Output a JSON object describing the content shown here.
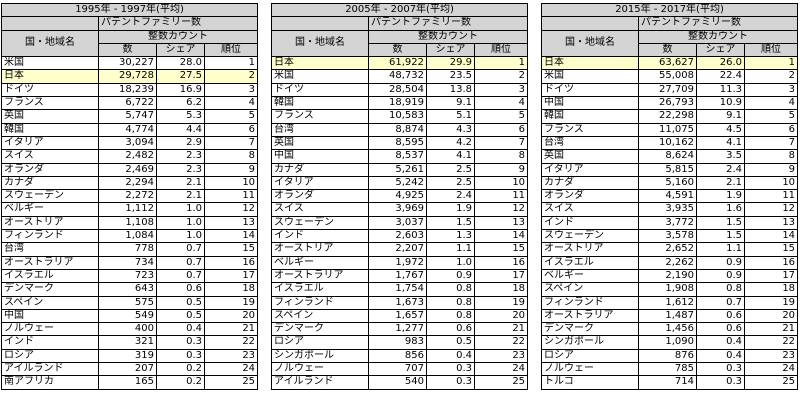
{
  "panels": [
    {
      "period": "1995年 - 1997年(平均)",
      "family_label": "パテントファミリー数",
      "country_label": "国・地域名",
      "integer_count_label": "整数カウント",
      "col_count": "数",
      "col_share": "シェア",
      "col_rank": "順位",
      "highlight_row": 1,
      "rows": [
        {
          "name": "米国",
          "count": "30,227",
          "share": "28.0",
          "rank": "1"
        },
        {
          "name": "日本",
          "count": "29,728",
          "share": "27.5",
          "rank": "2"
        },
        {
          "name": "ドイツ",
          "count": "18,239",
          "share": "16.9",
          "rank": "3"
        },
        {
          "name": "フランス",
          "count": "6,722",
          "share": "6.2",
          "rank": "4"
        },
        {
          "name": "英国",
          "count": "5,747",
          "share": "5.3",
          "rank": "5"
        },
        {
          "name": "韓国",
          "count": "4,774",
          "share": "4.4",
          "rank": "6"
        },
        {
          "name": "イタリア",
          "count": "3,094",
          "share": "2.9",
          "rank": "7"
        },
        {
          "name": "スイス",
          "count": "2,482",
          "share": "2.3",
          "rank": "8"
        },
        {
          "name": "オランダ",
          "count": "2,469",
          "share": "2.3",
          "rank": "9"
        },
        {
          "name": "カナダ",
          "count": "2,294",
          "share": "2.1",
          "rank": "10"
        },
        {
          "name": "スウェーデン",
          "count": "2,272",
          "share": "2.1",
          "rank": "11"
        },
        {
          "name": "ベルギー",
          "count": "1,112",
          "share": "1.0",
          "rank": "12"
        },
        {
          "name": "オーストリア",
          "count": "1,108",
          "share": "1.0",
          "rank": "13"
        },
        {
          "name": "フィンランド",
          "count": "1,084",
          "share": "1.0",
          "rank": "14"
        },
        {
          "name": "台湾",
          "count": "778",
          "share": "0.7",
          "rank": "15"
        },
        {
          "name": "オーストラリア",
          "count": "734",
          "share": "0.7",
          "rank": "16"
        },
        {
          "name": "イスラエル",
          "count": "723",
          "share": "0.7",
          "rank": "17"
        },
        {
          "name": "デンマーク",
          "count": "643",
          "share": "0.6",
          "rank": "18"
        },
        {
          "name": "スペイン",
          "count": "575",
          "share": "0.5",
          "rank": "19"
        },
        {
          "name": "中国",
          "count": "549",
          "share": "0.5",
          "rank": "20"
        },
        {
          "name": "ノルウェー",
          "count": "400",
          "share": "0.4",
          "rank": "21"
        },
        {
          "name": "インド",
          "count": "321",
          "share": "0.3",
          "rank": "22"
        },
        {
          "name": "ロシア",
          "count": "319",
          "share": "0.3",
          "rank": "23"
        },
        {
          "name": "アイルランド",
          "count": "207",
          "share": "0.2",
          "rank": "24"
        },
        {
          "name": "南アフリカ",
          "count": "165",
          "share": "0.2",
          "rank": "25"
        }
      ]
    },
    {
      "period": "2005年 - 2007年(平均)",
      "family_label": "パテントファミリー数",
      "country_label": "国・地域名",
      "integer_count_label": "整数カウント",
      "col_count": "数",
      "col_share": "シェア",
      "col_rank": "順位",
      "highlight_row": 0,
      "rows": [
        {
          "name": "日本",
          "count": "61,922",
          "share": "29.9",
          "rank": "1"
        },
        {
          "name": "米国",
          "count": "48,732",
          "share": "23.5",
          "rank": "2"
        },
        {
          "name": "ドイツ",
          "count": "28,504",
          "share": "13.8",
          "rank": "3"
        },
        {
          "name": "韓国",
          "count": "18,919",
          "share": "9.1",
          "rank": "4"
        },
        {
          "name": "フランス",
          "count": "10,583",
          "share": "5.1",
          "rank": "5"
        },
        {
          "name": "台湾",
          "count": "8,874",
          "share": "4.3",
          "rank": "6"
        },
        {
          "name": "英国",
          "count": "8,595",
          "share": "4.2",
          "rank": "7"
        },
        {
          "name": "中国",
          "count": "8,537",
          "share": "4.1",
          "rank": "8"
        },
        {
          "name": "カナダ",
          "count": "5,261",
          "share": "2.5",
          "rank": "9"
        },
        {
          "name": "イタリア",
          "count": "5,242",
          "share": "2.5",
          "rank": "10"
        },
        {
          "name": "オランダ",
          "count": "4,925",
          "share": "2.4",
          "rank": "11"
        },
        {
          "name": "スイス",
          "count": "3,969",
          "share": "1.9",
          "rank": "12"
        },
        {
          "name": "スウェーデン",
          "count": "3,037",
          "share": "1.5",
          "rank": "13"
        },
        {
          "name": "インド",
          "count": "2,603",
          "share": "1.3",
          "rank": "14"
        },
        {
          "name": "オーストリア",
          "count": "2,207",
          "share": "1.1",
          "rank": "15"
        },
        {
          "name": "ベルギー",
          "count": "1,972",
          "share": "1.0",
          "rank": "16"
        },
        {
          "name": "オーストラリア",
          "count": "1,767",
          "share": "0.9",
          "rank": "17"
        },
        {
          "name": "イスラエル",
          "count": "1,754",
          "share": "0.8",
          "rank": "18"
        },
        {
          "name": "フィンランド",
          "count": "1,673",
          "share": "0.8",
          "rank": "19"
        },
        {
          "name": "スペイン",
          "count": "1,657",
          "share": "0.8",
          "rank": "20"
        },
        {
          "name": "デンマーク",
          "count": "1,277",
          "share": "0.6",
          "rank": "21"
        },
        {
          "name": "ロシア",
          "count": "983",
          "share": "0.5",
          "rank": "22"
        },
        {
          "name": "シンガポール",
          "count": "856",
          "share": "0.4",
          "rank": "23"
        },
        {
          "name": "ノルウェー",
          "count": "707",
          "share": "0.3",
          "rank": "24"
        },
        {
          "name": "アイルランド",
          "count": "540",
          "share": "0.3",
          "rank": "25"
        }
      ]
    },
    {
      "period": "2015年 - 2017年(平均)",
      "family_label": "パテントファミリー数",
      "country_label": "国・地域名",
      "integer_count_label": "整数カウント",
      "col_count": "数",
      "col_share": "シェア",
      "col_rank": "順位",
      "highlight_row": 0,
      "rows": [
        {
          "name": "日本",
          "count": "63,627",
          "share": "26.0",
          "rank": "1"
        },
        {
          "name": "米国",
          "count": "55,008",
          "share": "22.4",
          "rank": "2"
        },
        {
          "name": "ドイツ",
          "count": "27,709",
          "share": "11.3",
          "rank": "3"
        },
        {
          "name": "中国",
          "count": "26,793",
          "share": "10.9",
          "rank": "4"
        },
        {
          "name": "韓国",
          "count": "22,298",
          "share": "9.1",
          "rank": "5"
        },
        {
          "name": "フランス",
          "count": "11,075",
          "share": "4.5",
          "rank": "6"
        },
        {
          "name": "台湾",
          "count": "10,162",
          "share": "4.1",
          "rank": "7"
        },
        {
          "name": "英国",
          "count": "8,624",
          "share": "3.5",
          "rank": "8"
        },
        {
          "name": "イタリア",
          "count": "5,815",
          "share": "2.4",
          "rank": "9"
        },
        {
          "name": "カナダ",
          "count": "5,160",
          "share": "2.1",
          "rank": "10"
        },
        {
          "name": "オランダ",
          "count": "4,591",
          "share": "1.9",
          "rank": "11"
        },
        {
          "name": "スイス",
          "count": "3,935",
          "share": "1.6",
          "rank": "12"
        },
        {
          "name": "インド",
          "count": "3,772",
          "share": "1.5",
          "rank": "13"
        },
        {
          "name": "スウェーデン",
          "count": "3,578",
          "share": "1.5",
          "rank": "14"
        },
        {
          "name": "オーストリア",
          "count": "2,652",
          "share": "1.1",
          "rank": "15"
        },
        {
          "name": "イスラエル",
          "count": "2,262",
          "share": "0.9",
          "rank": "16"
        },
        {
          "name": "ベルギー",
          "count": "2,190",
          "share": "0.9",
          "rank": "17"
        },
        {
          "name": "スペイン",
          "count": "1,908",
          "share": "0.8",
          "rank": "18"
        },
        {
          "name": "フィンランド",
          "count": "1,612",
          "share": "0.7",
          "rank": "19"
        },
        {
          "name": "オーストラリア",
          "count": "1,487",
          "share": "0.6",
          "rank": "20"
        },
        {
          "name": "デンマーク",
          "count": "1,456",
          "share": "0.6",
          "rank": "21"
        },
        {
          "name": "シンガポール",
          "count": "1,090",
          "share": "0.4",
          "rank": "22"
        },
        {
          "name": "ロシア",
          "count": "876",
          "share": "0.4",
          "rank": "23"
        },
        {
          "name": "ノルウェー",
          "count": "785",
          "share": "0.3",
          "rank": "24"
        },
        {
          "name": "トルコ",
          "count": "714",
          "share": "0.3",
          "rank": "25"
        }
      ]
    }
  ]
}
